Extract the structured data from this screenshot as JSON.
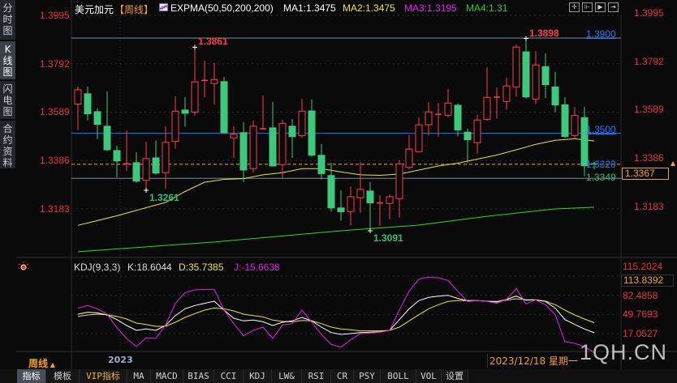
{
  "sidebar": {
    "tabs": [
      {
        "label": "分时图",
        "active": false
      },
      {
        "label": "K线图",
        "active": true
      },
      {
        "label": "闪电图",
        "active": false
      },
      {
        "label": "合约资料",
        "active": false
      }
    ]
  },
  "header": {
    "symbol": "美元加元",
    "period": "【周线】",
    "indicator": "EXPMA(50,50,200,200)",
    "ma1": "MA1:1.3475",
    "ma2": "MA2:1.3475",
    "ma3": "MA3:1.3195",
    "ma4": "MA4:1.31",
    "toolbar_icons": [
      "crosshair-icon",
      "fit-range-icon",
      "play-forward-icon",
      "jump-to-end-icon"
    ]
  },
  "colors": {
    "up": "#ff3b4e",
    "down": "#3cc97e",
    "axis_label": "#e8303e",
    "ma1": "#e8e820",
    "ma3": "#22dd22",
    "k": "#ffffff",
    "d": "#e8e820",
    "j": "#e020e8",
    "level_line": "#1e78ff",
    "last_price": "#f0a030"
  },
  "price_axis": {
    "ticks": [
      "1.3995",
      "1.3792",
      "1.3589",
      "1.3386",
      "1.3183"
    ],
    "range": [
      1.3095,
      1.4005
    ]
  },
  "chart_data": [
    {
      "type": "candlestick",
      "x_label_shown": "2023",
      "candles_ohlc": [
        [
          1.3623,
          1.3697,
          1.3514,
          1.3683
        ],
        [
          1.3666,
          1.3696,
          1.3554,
          1.3582
        ],
        [
          1.3591,
          1.3605,
          1.3476,
          1.3538
        ],
        [
          1.353,
          1.3676,
          1.3426,
          1.3431
        ],
        [
          1.3428,
          1.3448,
          1.3316,
          1.3384
        ],
        [
          1.3372,
          1.3513,
          1.3343,
          1.3372
        ],
        [
          1.3377,
          1.3421,
          1.3293,
          1.3299
        ],
        [
          1.3303,
          1.3465,
          1.3261,
          1.3394
        ],
        [
          1.3397,
          1.3469,
          1.3327,
          1.3333
        ],
        [
          1.3335,
          1.353,
          1.3269,
          1.3462
        ],
        [
          1.3466,
          1.3656,
          1.3435,
          1.3593
        ],
        [
          1.3598,
          1.3652,
          1.3528,
          1.3584
        ],
        [
          1.3589,
          1.3861,
          1.3575,
          1.3716
        ],
        [
          1.3722,
          1.3805,
          1.3652,
          1.3722
        ],
        [
          1.3709,
          1.3795,
          1.3622,
          1.3726
        ],
        [
          1.3717,
          1.3737,
          1.3499,
          1.3503
        ],
        [
          1.3481,
          1.353,
          1.3397,
          1.3496
        ],
        [
          1.3503,
          1.3547,
          1.3295,
          1.3346
        ],
        [
          1.3352,
          1.3554,
          1.3336,
          1.353
        ],
        [
          1.3519,
          1.3659,
          1.3516,
          1.3519
        ],
        [
          1.3523,
          1.3632,
          1.3361,
          1.3363
        ],
        [
          1.3369,
          1.3557,
          1.331,
          1.3542
        ],
        [
          1.353,
          1.356,
          1.3397,
          1.3486
        ],
        [
          1.349,
          1.3645,
          1.3481,
          1.3593
        ],
        [
          1.3594,
          1.3642,
          1.3402,
          1.3408
        ],
        [
          1.3408,
          1.3455,
          1.3307,
          1.3331
        ],
        [
          1.3323,
          1.3377,
          1.3171,
          1.3187
        ],
        [
          1.3187,
          1.3261,
          1.3133,
          1.3171
        ],
        [
          1.3172,
          1.3278,
          1.3113,
          1.3234
        ],
        [
          1.323,
          1.338,
          1.3167,
          1.3265
        ],
        [
          1.3258,
          1.3295,
          1.3091,
          1.3208
        ],
        [
          1.3208,
          1.3239,
          1.3113,
          1.3208
        ],
        [
          1.3206,
          1.3244,
          1.314,
          1.3234
        ],
        [
          1.3226,
          1.3387,
          1.3147,
          1.3372
        ],
        [
          1.3357,
          1.3494,
          1.335,
          1.3434
        ],
        [
          1.3423,
          1.3566,
          1.342,
          1.3536
        ],
        [
          1.3536,
          1.3631,
          1.3491,
          1.359
        ],
        [
          1.358,
          1.3627,
          1.3485,
          1.358
        ],
        [
          1.3576,
          1.3686,
          1.3568,
          1.3627
        ],
        [
          1.3618,
          1.3625,
          1.3488,
          1.3514
        ],
        [
          1.3505,
          1.352,
          1.3376,
          1.3473
        ],
        [
          1.3461,
          1.3577,
          1.3413,
          1.3556
        ],
        [
          1.3559,
          1.3778,
          1.3553,
          1.3651
        ],
        [
          1.3652,
          1.3692,
          1.3562,
          1.3652
        ],
        [
          1.3634,
          1.3734,
          1.3599,
          1.3699
        ],
        [
          1.3695,
          1.3873,
          1.3654,
          1.3862
        ],
        [
          1.3842,
          1.3898,
          1.3647,
          1.3653
        ],
        [
          1.3644,
          1.3846,
          1.3623,
          1.3787
        ],
        [
          1.378,
          1.3836,
          1.3647,
          1.3704
        ],
        [
          1.3695,
          1.3758,
          1.3589,
          1.3619
        ],
        [
          1.362,
          1.3652,
          1.3481,
          1.3487
        ],
        [
          1.3491,
          1.3611,
          1.3476,
          1.3575
        ],
        [
          1.3566,
          1.3611,
          1.332,
          1.3364
        ],
        [
          1.3372,
          1.338,
          1.3349,
          1.3367
        ]
      ],
      "ma1_points": [
        [
          1,
          1.3114
        ],
        [
          5,
          1.3154
        ],
        [
          8,
          1.3188
        ],
        [
          10,
          1.321
        ],
        [
          12,
          1.3256
        ],
        [
          14,
          1.3295
        ],
        [
          16,
          1.3307
        ],
        [
          18,
          1.331
        ],
        [
          20,
          1.3326
        ],
        [
          22,
          1.3335
        ],
        [
          24,
          1.3352
        ],
        [
          26,
          1.3352
        ],
        [
          28,
          1.3338
        ],
        [
          30,
          1.3326
        ],
        [
          32,
          1.3324
        ],
        [
          34,
          1.3329
        ],
        [
          36,
          1.3346
        ],
        [
          38,
          1.3363
        ],
        [
          40,
          1.3375
        ],
        [
          42,
          1.3392
        ],
        [
          44,
          1.3409
        ],
        [
          46,
          1.3431
        ],
        [
          48,
          1.3454
        ],
        [
          50,
          1.3471
        ],
        [
          52,
          1.3477
        ],
        [
          54,
          1.3468
        ]
      ],
      "ma3_points": [
        [
          1,
          1.3003
        ],
        [
          15,
          1.3044
        ],
        [
          28,
          1.3091
        ],
        [
          36,
          1.3115
        ],
        [
          43,
          1.3152
        ],
        [
          50,
          1.3183
        ],
        [
          54,
          1.319
        ]
      ],
      "levels": [
        {
          "value": 1.39,
          "label": "1.3900",
          "color": "#1e78ff"
        },
        {
          "value": 1.35,
          "label": "1.3500",
          "color": "#1e78ff"
        },
        {
          "value": 1.332,
          "label": "1.3320",
          "color": "#1e78ff"
        },
        {
          "value": 1.3349,
          "label": "1.3349",
          "color": "#2fbf7a"
        }
      ],
      "last_price": "1.3367",
      "annotations": [
        {
          "label": "1.3861",
          "candle": 13,
          "kind": "high"
        },
        {
          "label": "1.3898",
          "candle": 47,
          "kind": "high"
        },
        {
          "label": "1.3261",
          "candle": 8,
          "kind": "low"
        },
        {
          "label": "1.3091",
          "candle": 31,
          "kind": "low"
        }
      ]
    },
    {
      "type": "line",
      "title": "KDJ(9,3,3)",
      "legend": {
        "k": "K:18.6044",
        "d": "D:35.7385",
        "j": "J:-15.6638"
      },
      "y_ticks": [
        "115.2024",
        "82.4858",
        "49.7693",
        "17.0527"
      ],
      "current_value": "113.8392",
      "series": [
        {
          "name": "K",
          "values": [
            50.2,
            53.5,
            52.5,
            48.8,
            41.0,
            30.9,
            22.6,
            24.9,
            22.6,
            30.9,
            47.9,
            59.4,
            65.0,
            68.7,
            72.4,
            57.1,
            43.3,
            38.7,
            40.1,
            37.3,
            30.9,
            36.4,
            38.7,
            44.7,
            38.7,
            28.1,
            18.9,
            15.7,
            17.1,
            18.9,
            19.4,
            20.3,
            22.6,
            41.0,
            59.4,
            73.3,
            78.8,
            81.1,
            82.5,
            77.0,
            73.3,
            73.3,
            72.4,
            71.0,
            75.6,
            81.1,
            74.2,
            74.7,
            71.9,
            60.4,
            41.0,
            32.7,
            24.9,
            18.6
          ]
        },
        {
          "name": "D",
          "values": [
            46.5,
            48.8,
            50.2,
            49.3,
            46.5,
            41.9,
            35.0,
            32.7,
            29.5,
            29.5,
            36.4,
            44.7,
            51.2,
            57.1,
            60.8,
            59.4,
            55.8,
            50.2,
            47.9,
            45.6,
            40.1,
            37.8,
            37.3,
            39.6,
            38.7,
            34.1,
            28.1,
            24.9,
            23.5,
            21.7,
            21.7,
            21.7,
            22.6,
            28.1,
            38.7,
            49.3,
            59.4,
            66.4,
            71.9,
            73.3,
            73.3,
            73.3,
            72.4,
            71.9,
            74.2,
            76.5,
            74.7,
            74.7,
            72.4,
            66.4,
            57.1,
            48.8,
            41.9,
            35.7
          ]
        },
        {
          "name": "J",
          "values": [
            60.4,
            65.0,
            59.4,
            50.2,
            27.2,
            8.8,
            -5.1,
            9.7,
            8.8,
            31.8,
            68.7,
            87.1,
            91.7,
            92.6,
            92.6,
            57.1,
            34.1,
            13.4,
            22.6,
            28.1,
            8.8,
            31.8,
            34.1,
            57.1,
            36.4,
            15.7,
            -1.4,
            -6.0,
            6.5,
            17.1,
            18.0,
            19.4,
            22.6,
            57.1,
            89.4,
            110.1,
            113.4,
            112.4,
            107.8,
            89.4,
            71.9,
            73.3,
            71.9,
            68.7,
            75.6,
            94.0,
            67.7,
            74.7,
            66.4,
            49.3,
            3.2,
            0.5,
            -5.1,
            -15.7
          ]
        }
      ]
    }
  ],
  "time_axis": {
    "period_label": "周线",
    "year_label": "2023",
    "cursor_date": "2023/12/18 星期一"
  },
  "watermark": "1QH.CN",
  "tabbar": {
    "tabs": [
      "指标",
      "模板",
      "VIP指标",
      "MA",
      "MACD",
      "BIAS",
      "CCI",
      "KDJ",
      "LW&",
      "RSI",
      "CR",
      "PSY",
      "BOLL",
      "VOL",
      "设置"
    ],
    "active": "指标"
  }
}
